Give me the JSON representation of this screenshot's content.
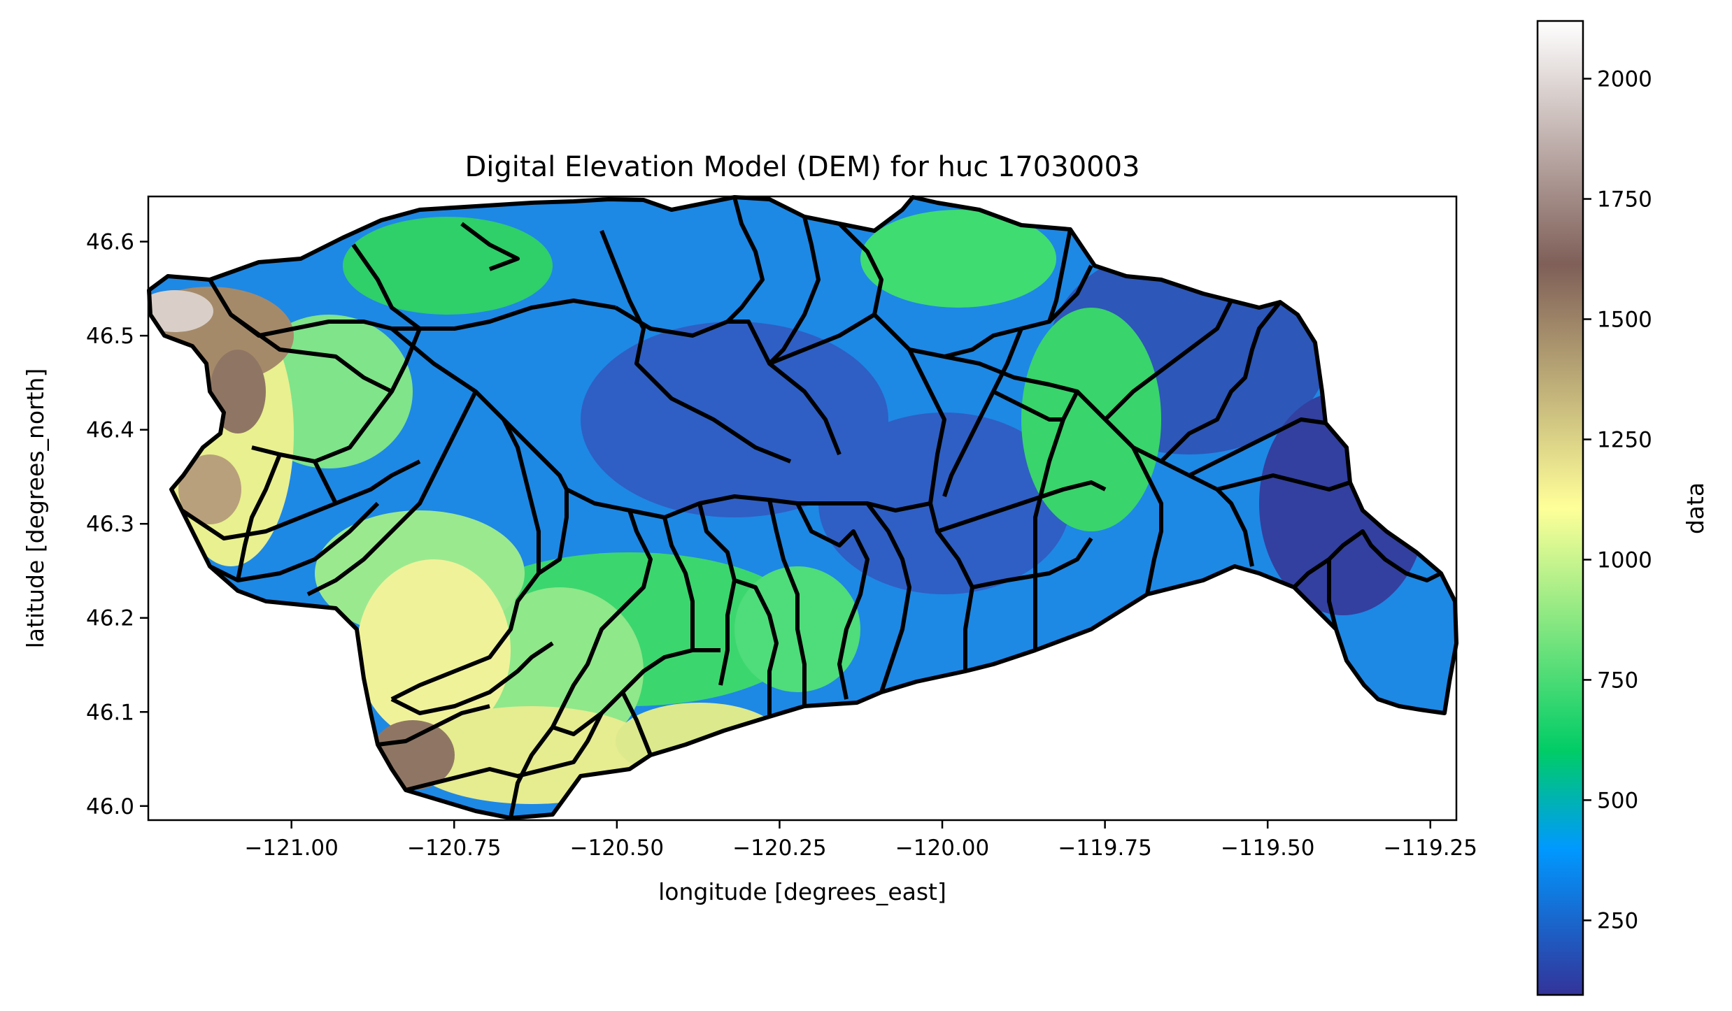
{
  "chart_data": {
    "type": "heatmap",
    "title": "Digital Elevation Model (DEM) for huc 17030003",
    "xlabel": "longitude [degrees_east]",
    "ylabel": "latitude [degrees_north]",
    "xlim": [
      -121.22,
      -119.21
    ],
    "ylim": [
      45.985,
      46.648
    ],
    "x_ticks": [
      -121.0,
      -120.75,
      -120.5,
      -120.25,
      -120.0,
      -119.75,
      -119.5,
      -119.25
    ],
    "x_tick_labels": [
      "−121.00",
      "−120.75",
      "−120.50",
      "−120.25",
      "−120.00",
      "−119.75",
      "−119.50",
      "−119.25"
    ],
    "y_ticks": [
      46.0,
      46.1,
      46.2,
      46.3,
      46.4,
      46.5,
      46.6
    ],
    "y_tick_labels": [
      "46.0",
      "46.1",
      "46.2",
      "46.3",
      "46.4",
      "46.5",
      "46.6"
    ],
    "colorbar": {
      "label": "data",
      "colormap": "terrain",
      "range": [
        95,
        2120
      ],
      "ticks": [
        250,
        500,
        750,
        1000,
        1250,
        1500,
        1750,
        2000
      ],
      "tick_labels": [
        "250",
        "500",
        "750",
        "1000",
        "1250",
        "1500",
        "1750",
        "2000"
      ]
    },
    "grid": false,
    "legend": "none",
    "boundary_color": "#000000"
  }
}
